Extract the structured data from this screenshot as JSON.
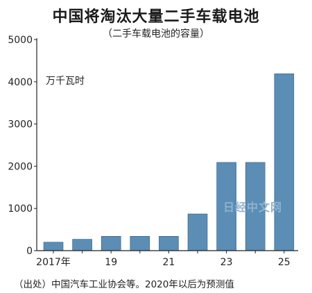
{
  "chart_data": {
    "type": "bar",
    "title": "中国将淘汰大量二手车载电池",
    "subtitle": "（二手车载电池的容量）",
    "unit_label": "万千瓦时",
    "categories": [
      "2017",
      "2018",
      "2019",
      "2020",
      "2021",
      "2022",
      "2023",
      "2024",
      "2025"
    ],
    "x_tick_labels": [
      "2017年",
      "",
      "19",
      "",
      "21",
      "",
      "23",
      "",
      "25"
    ],
    "values": [
      200,
      270,
      340,
      340,
      340,
      870,
      2090,
      2090,
      4190
    ],
    "ylim": [
      0,
      5000
    ],
    "y_ticks": [
      "0",
      "1000",
      "2000",
      "3000",
      "4000",
      "5000"
    ],
    "bar_color": "#5b8db5",
    "grid": false,
    "source_note": "（出处）中国汽车工业协会等。2020年以后为预测值"
  },
  "watermark": "日经中文网"
}
